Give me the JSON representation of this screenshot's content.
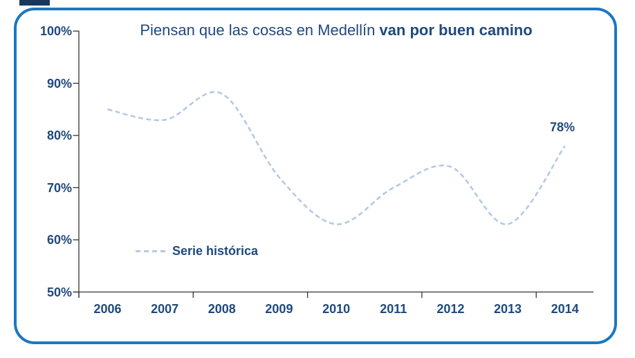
{
  "frame": {
    "border_color": "#1878C2",
    "background_color": "#FFFFFF",
    "corner_fragment_color": "#17375E"
  },
  "chart_data": {
    "type": "line",
    "title": {
      "normal": "Piensan que las cosas en Medellín ",
      "bold": "van por buen camino"
    },
    "categories": [
      "2006",
      "2007",
      "2008",
      "2009",
      "2010",
      "2011",
      "2012",
      "2013",
      "2014"
    ],
    "series": [
      {
        "name": "Serie histórica",
        "values": [
          85,
          83,
          88,
          72,
          63,
          70,
          74,
          63,
          78
        ],
        "line_style": "dashed",
        "smoothed": true,
        "color": "#B4C9E4"
      }
    ],
    "y_axis": {
      "ticks": [
        "100%",
        "90%",
        "80%",
        "70%",
        "60%",
        "50%"
      ],
      "min": 50,
      "max": 100,
      "unit": "%"
    },
    "x_axis": {
      "tick_interval_categories": 2
    },
    "end_label": "78%",
    "legend": {
      "label": "Serie histórica",
      "position": "inside-bottom-left"
    },
    "grid": "off",
    "text_color": "#1F497D",
    "axis_color": "#333333"
  }
}
